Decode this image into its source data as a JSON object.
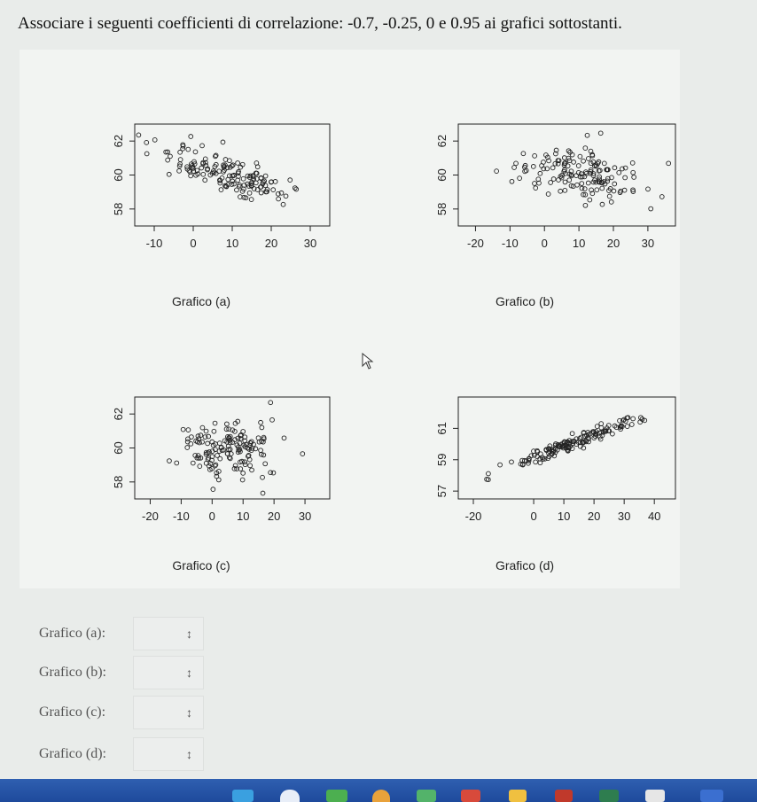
{
  "question": "Associare i seguenti coefficienti di correlazione: -0.7, -0.25, 0 e 0.95 ai grafici sottostanti.",
  "plots": [
    {
      "caption": "Grafico (a)",
      "xticks": [
        "-10",
        "0",
        "10",
        "20",
        "30"
      ],
      "yticks": [
        "58",
        "60",
        "62"
      ]
    },
    {
      "caption": "Grafico (b)",
      "xticks": [
        "-20",
        "-10",
        "0",
        "10",
        "20",
        "30"
      ],
      "yticks": [
        "58",
        "60",
        "62"
      ]
    },
    {
      "caption": "Grafico (c)",
      "xticks": [
        "-20",
        "-10",
        "0",
        "10",
        "20",
        "30"
      ],
      "yticks": [
        "58",
        "60",
        "62"
      ]
    },
    {
      "caption": "Grafico (d)",
      "xticks": [
        "-20",
        "0",
        "10",
        "20",
        "30",
        "40"
      ],
      "yticks": [
        "57",
        "59",
        "61"
      ]
    }
  ],
  "answers": [
    {
      "label": "Grafico (a):",
      "selected": ""
    },
    {
      "label": "Grafico (b):",
      "selected": ""
    },
    {
      "label": "Grafico (c):",
      "selected": ""
    },
    {
      "label": "Grafico (d):",
      "selected": ""
    }
  ],
  "chart_data": [
    {
      "type": "scatter",
      "correlation_hint": "negative strong",
      "xlim": [
        -15,
        35
      ],
      "ylim": [
        57,
        63
      ],
      "x_ticks": [
        -10,
        0,
        10,
        20,
        30
      ],
      "y_ticks": [
        58,
        60,
        62
      ],
      "n_points": 150
    },
    {
      "type": "scatter",
      "correlation_hint": "negative weak",
      "xlim": [
        -25,
        38
      ],
      "ylim": [
        57,
        63
      ],
      "x_ticks": [
        -20,
        -10,
        0,
        10,
        20,
        30
      ],
      "y_ticks": [
        58,
        60,
        62
      ],
      "n_points": 150
    },
    {
      "type": "scatter",
      "correlation_hint": "none",
      "xlim": [
        -25,
        38
      ],
      "ylim": [
        57,
        63
      ],
      "x_ticks": [
        -20,
        -10,
        0,
        10,
        20,
        30
      ],
      "y_ticks": [
        58,
        60,
        62
      ],
      "n_points": 150
    },
    {
      "type": "scatter",
      "correlation_hint": "positive strong",
      "xlim": [
        -25,
        47
      ],
      "ylim": [
        56.5,
        63
      ],
      "x_ticks": [
        -20,
        0,
        10,
        20,
        30,
        40
      ],
      "y_ticks": [
        57,
        59,
        61
      ],
      "n_points": 150
    }
  ]
}
